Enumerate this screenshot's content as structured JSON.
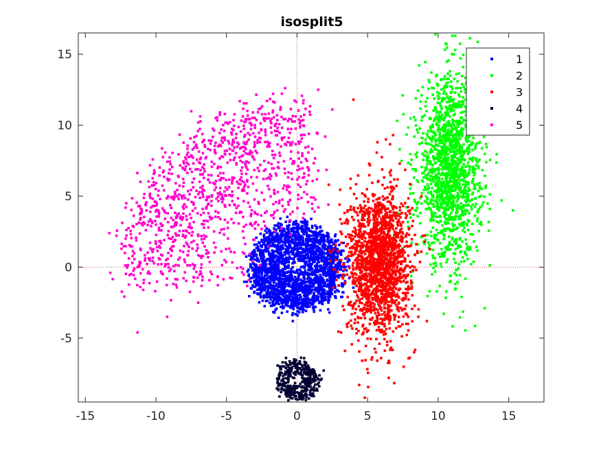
{
  "chart_data": {
    "type": "scatter",
    "title": "isosplit5",
    "xlabel": "",
    "ylabel": "",
    "xlim": [
      -15.5,
      17.5
    ],
    "ylim": [
      -9.5,
      16.5
    ],
    "xticks": [
      -15,
      -10,
      -5,
      0,
      5,
      10,
      15
    ],
    "yticks": [
      -5,
      0,
      5,
      10,
      15
    ],
    "grid": false,
    "reference_lines": {
      "x": 0,
      "y": 0,
      "style": "dotted",
      "color": "#e04040"
    },
    "legend": {
      "placement": "top-right"
    },
    "series": [
      {
        "name": "1",
        "color": "#0000ff",
        "shape": "round",
        "center": [
          0,
          0
        ],
        "spread": [
          1.4,
          1.4
        ],
        "count": 2200,
        "outliers": [
          [
            -3.5,
            -0.3
          ],
          [
            -3.3,
            0.2
          ],
          [
            3.3,
            1.7
          ],
          [
            3.4,
            -1.0
          ],
          [
            -0.3,
            -3.8
          ],
          [
            1.0,
            3.4
          ],
          [
            -1.6,
            -3.2
          ],
          [
            2.3,
            -3.2
          ]
        ]
      },
      {
        "name": "2",
        "color": "#00ff00",
        "shape": "gaussian",
        "center": [
          10.8,
          6.8
        ],
        "spread": [
          1.1,
          3.2
        ],
        "count": 1600,
        "outliers": [
          [
            10.2,
            16.6
          ],
          [
            10.6,
            15.7
          ],
          [
            11.0,
            16.3
          ],
          [
            15.3,
            4.0
          ],
          [
            14.5,
            4.7
          ],
          [
            13.3,
            -2.9
          ],
          [
            8.2,
            -0.3
          ],
          [
            8.9,
            10.6
          ],
          [
            7.1,
            10.3
          ],
          [
            8.2,
            6.9
          ],
          [
            10.9,
            -0.6
          ],
          [
            12.3,
            13.4
          ]
        ]
      },
      {
        "name": "3",
        "color": "#ff0000",
        "shape": "gaussian",
        "center": [
          5.8,
          0.4
        ],
        "spread": [
          1.1,
          2.5
        ],
        "count": 1800,
        "outliers": [
          [
            4.0,
            11.8
          ],
          [
            6.8,
            9.3
          ],
          [
            6.3,
            9.0
          ],
          [
            5.7,
            8.8
          ],
          [
            4.4,
            -8.3
          ],
          [
            4.8,
            -9.2
          ],
          [
            3.4,
            -5.9
          ],
          [
            8.6,
            -3.5
          ],
          [
            9.2,
            -3.8
          ],
          [
            8.3,
            -6.0
          ],
          [
            6.5,
            -7.8
          ]
        ]
      },
      {
        "name": "4",
        "color": "#000033",
        "shape": "round",
        "center": [
          0,
          -7.95
        ],
        "spread": [
          0.65,
          0.65
        ],
        "count": 350,
        "outliers": [
          [
            -1.2,
            -7.6
          ],
          [
            0.9,
            -9.0
          ],
          [
            1.5,
            -7.9
          ],
          [
            -0.2,
            -6.5
          ]
        ]
      },
      {
        "name": "5",
        "color": "#ff00cc",
        "shape": "arc",
        "arc_center": [
          1.0,
          -1.0
        ],
        "radius_range": [
          4.0,
          13.5
        ],
        "angle_range_deg": [
          92,
          180
        ],
        "count": 1100,
        "outliers": [
          [
            -13.3,
            2.4
          ],
          [
            -12.1,
            4.5
          ],
          [
            -11.3,
            -4.6
          ],
          [
            1.5,
            12.5
          ],
          [
            2.5,
            11.1
          ],
          [
            2.0,
            9.2
          ],
          [
            -1.9,
            6.2
          ],
          [
            1.5,
            6.8
          ],
          [
            -0.6,
            4.4
          ],
          [
            -7.0,
            -2.5
          ],
          [
            -9.2,
            -3.5
          ],
          [
            -12.2,
            1.0
          ]
        ]
      }
    ]
  }
}
